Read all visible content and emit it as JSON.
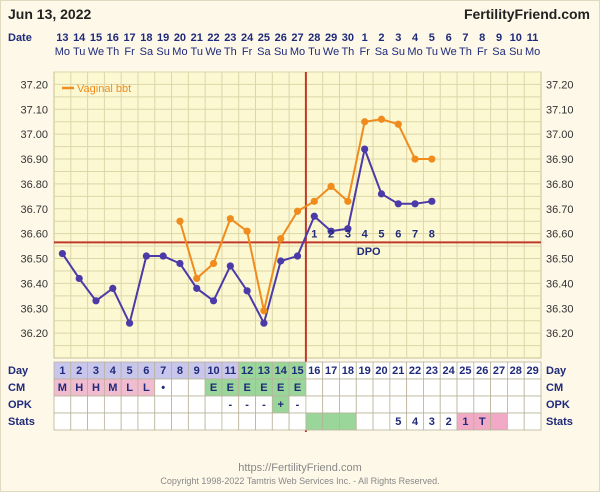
{
  "header": {
    "date": "Jun 13, 2022",
    "site": "FertilityFriend.com"
  },
  "footer": {
    "url": "https://FertilityFriend.com",
    "copyright": "Copyright 1998-2022 Tamtris Web Services Inc. - All Rights Reserved."
  },
  "chart_data": {
    "type": "line",
    "date_row_label": "Date",
    "dates": [
      "13",
      "14",
      "15",
      "16",
      "17",
      "18",
      "19",
      "20",
      "21",
      "22",
      "23",
      "24",
      "25",
      "26",
      "27",
      "28",
      "29",
      "30",
      "1",
      "2",
      "3",
      "4",
      "5",
      "6",
      "7",
      "8",
      "9",
      "10",
      "11"
    ],
    "weekdays": [
      "Mo",
      "Tu",
      "We",
      "Th",
      "Fr",
      "Sa",
      "Su",
      "Mo",
      "Tu",
      "We",
      "Th",
      "Fr",
      "Sa",
      "Su",
      "Mo",
      "Tu",
      "We",
      "Th",
      "Fr",
      "Sa",
      "Su",
      "Mo",
      "Tu",
      "We",
      "Th",
      "Fr",
      "Sa",
      "Su",
      "Mo"
    ],
    "ylim": [
      36.1,
      37.25
    ],
    "yticks": [
      "37.20",
      "37.10",
      "37.00",
      "36.90",
      "36.80",
      "36.70",
      "36.60",
      "36.50",
      "36.40",
      "36.30",
      "36.20"
    ],
    "grid": true,
    "legend_placement": "top-left",
    "series": [
      {
        "name": "",
        "color": "#4b3aa8",
        "values": [
          36.52,
          36.42,
          36.33,
          36.38,
          36.24,
          36.51,
          36.51,
          36.48,
          36.38,
          36.33,
          36.47,
          36.37,
          36.24,
          36.49,
          36.51,
          36.67,
          36.61,
          36.62,
          36.94,
          36.76,
          36.72,
          36.72,
          36.73,
          null,
          null,
          null,
          null,
          null,
          null
        ]
      },
      {
        "name": "Vaginal bbt",
        "color": "#f08c1e",
        "values": [
          null,
          null,
          null,
          null,
          null,
          null,
          null,
          36.65,
          36.42,
          36.48,
          36.66,
          36.61,
          36.29,
          36.58,
          36.69,
          36.73,
          36.79,
          36.73,
          37.05,
          37.06,
          37.04,
          36.9,
          36.9,
          null,
          null,
          null,
          null,
          null,
          null
        ]
      }
    ],
    "coverline": {
      "value": 36.565,
      "color": "#c0392b"
    },
    "ovulation_day_index": 14,
    "dpo_label": "DPO",
    "dpo_numbers": [
      "1",
      "2",
      "3",
      "4",
      "5",
      "6",
      "7",
      "8"
    ],
    "dpo_start_index": 15,
    "rows": {
      "day": {
        "label": "Day",
        "values": [
          "1",
          "2",
          "3",
          "4",
          "5",
          "6",
          "7",
          "8",
          "9",
          "10",
          "11",
          "12",
          "13",
          "14",
          "15",
          "16",
          "17",
          "18",
          "19",
          "20",
          "21",
          "22",
          "23",
          "24",
          "25",
          "26",
          "27",
          "28",
          "29"
        ]
      },
      "cm": {
        "label": "CM",
        "values": [
          "M",
          "H",
          "H",
          "M",
          "L",
          "L",
          "•",
          "",
          "",
          "E",
          "E",
          "E",
          "E",
          "E",
          "E",
          "",
          "",
          "",
          "",
          "",
          "",
          "",
          "",
          "",
          "",
          "",
          "",
          "",
          ""
        ]
      },
      "opk": {
        "label": "OPK",
        "values": [
          "",
          "",
          "",
          "",
          "",
          "",
          "",
          "",
          "",
          "",
          "-",
          "-",
          "-",
          "+",
          "-",
          "",
          "",
          "",
          "",
          "",
          "",
          "",
          "",
          "",
          "",
          "",
          "",
          "",
          ""
        ]
      },
      "stats": {
        "label": "Stats",
        "values": [
          "",
          "",
          "",
          "",
          "",
          "",
          "",
          "",
          "",
          "",
          "",
          "",
          "",
          "",
          "",
          "",
          "",
          "",
          "",
          "",
          "5",
          "4",
          "3",
          "2",
          "1",
          "T",
          "",
          "",
          ""
        ]
      }
    },
    "colors": {
      "day_fill": "#c9c6ec",
      "fertile_fill": "#9ad59a",
      "period_fill": "#f2bcd0",
      "stats_period_fill": "#f2a9c5",
      "grid": "#ddd6a8",
      "plot_bg": "#fbf8d2"
    }
  }
}
